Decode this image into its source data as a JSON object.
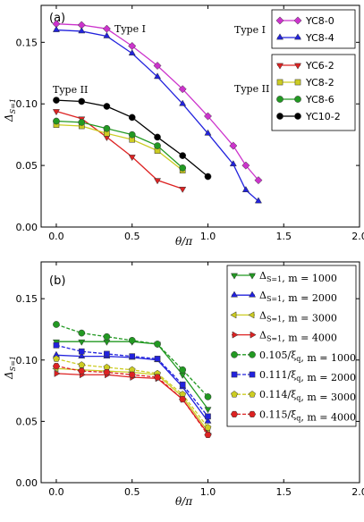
{
  "chart_data": [
    {
      "type": "line",
      "panel_label": "(a)",
      "ylabel_main": "Δ",
      "ylabel_sub": "S=1",
      "xlabel": "θ/π",
      "xlim": [
        -0.1,
        2.0
      ],
      "ylim": [
        0.0,
        0.18
      ],
      "xticks": [
        "0.0",
        "0.5",
        "1.0",
        "1.5",
        "2.0"
      ],
      "yticks": [
        "0.00",
        "0.05",
        "0.10",
        "0.15"
      ],
      "annotations": [
        "Type I",
        "Type II",
        "Type I",
        "Type II"
      ],
      "series": [
        {
          "name": "YC8-0",
          "color": "#cc33cc",
          "marker": "diamond",
          "dash": false,
          "x": [
            0.0,
            0.167,
            0.333,
            0.5,
            0.667,
            0.833,
            1.0,
            1.167,
            1.25,
            1.333
          ],
          "y": [
            0.165,
            0.164,
            0.161,
            0.147,
            0.131,
            0.112,
            0.09,
            0.066,
            0.05,
            0.038
          ]
        },
        {
          "name": "YC8-4",
          "color": "#2222dd",
          "marker": "triangle-up",
          "dash": false,
          "x": [
            0.0,
            0.167,
            0.333,
            0.5,
            0.667,
            0.833,
            1.0,
            1.167,
            1.25,
            1.333
          ],
          "y": [
            0.16,
            0.159,
            0.155,
            0.141,
            0.122,
            0.1,
            0.076,
            0.051,
            0.03,
            0.021
          ]
        },
        {
          "name": "YC6-2",
          "color": "#dd2222",
          "marker": "triangle-down",
          "dash": false,
          "x": [
            0.0,
            0.167,
            0.333,
            0.5,
            0.667,
            0.833
          ],
          "y": [
            0.094,
            0.088,
            0.073,
            0.057,
            0.038,
            0.031
          ]
        },
        {
          "name": "YC8-2",
          "color": "#cccc22",
          "marker": "square",
          "dash": false,
          "x": [
            0.0,
            0.167,
            0.333,
            0.5,
            0.667,
            0.833
          ],
          "y": [
            0.083,
            0.082,
            0.076,
            0.071,
            0.062,
            0.046
          ]
        },
        {
          "name": "YC8-6",
          "color": "#229922",
          "marker": "circle",
          "dash": false,
          "x": [
            0.0,
            0.167,
            0.333,
            0.5,
            0.667,
            0.833
          ],
          "y": [
            0.086,
            0.085,
            0.08,
            0.075,
            0.066,
            0.048
          ]
        },
        {
          "name": "YC10-2",
          "color": "#000000",
          "marker": "circle",
          "dash": false,
          "x": [
            0.0,
            0.167,
            0.333,
            0.5,
            0.667,
            0.833,
            1.0
          ],
          "y": [
            0.103,
            0.102,
            0.098,
            0.089,
            0.073,
            0.058,
            0.041
          ]
        }
      ]
    },
    {
      "type": "line",
      "panel_label": "(b)",
      "ylabel_main": "Δ",
      "ylabel_sub": "S=1",
      "xlabel": "θ/π",
      "xlim": [
        -0.1,
        2.0
      ],
      "ylim": [
        0.0,
        0.18
      ],
      "xticks": [
        "0.0",
        "0.5",
        "1.0",
        "1.5",
        "2.0"
      ],
      "yticks": [
        "0.00",
        "0.05",
        "0.10",
        "0.15"
      ],
      "series": [
        {
          "name": "Δ_{S=1}, m = 1000",
          "color": "#229922",
          "marker": "triangle-down",
          "dash": false,
          "x": [
            0.0,
            0.167,
            0.333,
            0.5,
            0.667,
            0.833,
            1.0
          ],
          "y": [
            0.115,
            0.115,
            0.115,
            0.115,
            0.113,
            0.088,
            0.06
          ]
        },
        {
          "name": "Δ_{S=1}, m = 2000",
          "color": "#2222dd",
          "marker": "triangle-up",
          "dash": false,
          "x": [
            0.0,
            0.167,
            0.333,
            0.5,
            0.667,
            0.833,
            1.0
          ],
          "y": [
            0.104,
            0.103,
            0.103,
            0.102,
            0.1,
            0.078,
            0.05
          ]
        },
        {
          "name": "Δ_{S=1}, m = 3000",
          "color": "#cccc22",
          "marker": "triangle-left",
          "dash": false,
          "x": [
            0.0,
            0.167,
            0.333,
            0.5,
            0.667,
            0.833,
            1.0
          ],
          "y": [
            0.093,
            0.092,
            0.091,
            0.09,
            0.088,
            0.07,
            0.042
          ]
        },
        {
          "name": "Δ_{S=1}, m = 4000",
          "color": "#dd2222",
          "marker": "triangle-right",
          "dash": false,
          "x": [
            0.0,
            0.167,
            0.333,
            0.5,
            0.667,
            0.833,
            1.0
          ],
          "y": [
            0.089,
            0.088,
            0.088,
            0.086,
            0.085,
            0.068,
            0.04
          ]
        },
        {
          "name": "0.105/ξ_q, m = 1000",
          "color": "#229922",
          "marker": "circle",
          "dash": true,
          "x": [
            0.0,
            0.167,
            0.333,
            0.5,
            0.667,
            0.833,
            1.0
          ],
          "y": [
            0.129,
            0.122,
            0.119,
            0.116,
            0.113,
            0.092,
            0.07
          ]
        },
        {
          "name": "0.111/ξ_q, m = 2000",
          "color": "#2222dd",
          "marker": "square",
          "dash": true,
          "x": [
            0.0,
            0.167,
            0.333,
            0.5,
            0.667,
            0.833,
            1.0
          ],
          "y": [
            0.112,
            0.107,
            0.105,
            0.103,
            0.101,
            0.08,
            0.054
          ]
        },
        {
          "name": "0.114/ξ_q, m = 3000",
          "color": "#cccc22",
          "marker": "pentagon",
          "dash": true,
          "x": [
            0.0,
            0.167,
            0.333,
            0.5,
            0.667,
            0.833,
            1.0
          ],
          "y": [
            0.101,
            0.096,
            0.094,
            0.092,
            0.089,
            0.072,
            0.045
          ]
        },
        {
          "name": "0.115/ξ_q, m = 4000",
          "color": "#dd2222",
          "marker": "hexagon",
          "dash": true,
          "x": [
            0.0,
            0.167,
            0.333,
            0.5,
            0.667,
            0.833,
            1.0
          ],
          "y": [
            0.095,
            0.091,
            0.09,
            0.088,
            0.086,
            0.068,
            0.039
          ]
        }
      ]
    }
  ]
}
